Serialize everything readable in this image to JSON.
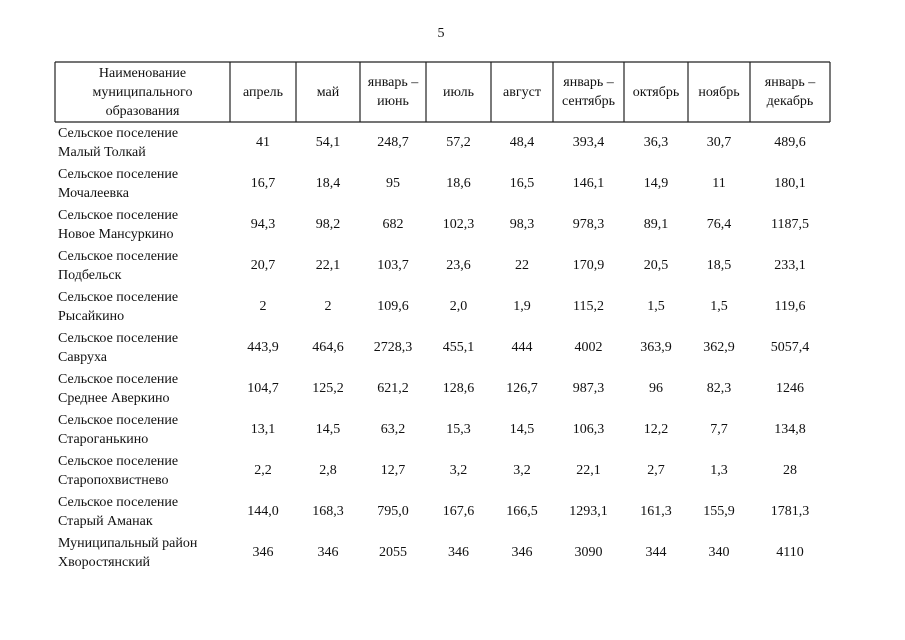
{
  "page_number": "5",
  "table": {
    "header": [
      [
        "Наименование",
        "муниципального",
        "образования"
      ],
      [
        "апрель"
      ],
      [
        "май"
      ],
      [
        "январь –",
        "июнь"
      ],
      [
        "июль"
      ],
      [
        "август"
      ],
      [
        "январь –",
        "сентябрь"
      ],
      [
        "октябрь"
      ],
      [
        "ноябрь"
      ],
      [
        "январь –",
        "декабрь"
      ]
    ],
    "rows": [
      {
        "name": [
          "Сельское поселение",
          "Малый Толкай"
        ],
        "cells": [
          "41",
          "54,1",
          "248,7",
          "57,2",
          "48,4",
          "393,4",
          "36,3",
          "30,7",
          "489,6"
        ]
      },
      {
        "name": [
          "Сельское поселение",
          "Мочалеевка"
        ],
        "cells": [
          "16,7",
          "18,4",
          "95",
          "18,6",
          "16,5",
          "146,1",
          "14,9",
          "11",
          "180,1"
        ]
      },
      {
        "name": [
          "Сельское поселение",
          "Новое Мансуркино"
        ],
        "cells": [
          "94,3",
          "98,2",
          "682",
          "102,3",
          "98,3",
          "978,3",
          "89,1",
          "76,4",
          "1187,5"
        ]
      },
      {
        "name": [
          "Сельское поселение",
          "Подбельск"
        ],
        "cells": [
          "20,7",
          "22,1",
          "103,7",
          "23,6",
          "22",
          "170,9",
          "20,5",
          "18,5",
          "233,1"
        ]
      },
      {
        "name": [
          "Сельское поселение",
          "Рысайкино"
        ],
        "cells": [
          "2",
          "2",
          "109,6",
          "2,0",
          "1,9",
          "115,2",
          "1,5",
          "1,5",
          "119,6"
        ]
      },
      {
        "name": [
          "Сельское поселение",
          "Савруха"
        ],
        "cells": [
          "443,9",
          "464,6",
          "2728,3",
          "455,1",
          "444",
          "4002",
          "363,9",
          "362,9",
          "5057,4"
        ]
      },
      {
        "name": [
          "Сельское поселение",
          "Среднее Аверкино"
        ],
        "cells": [
          "104,7",
          "125,2",
          "621,2",
          "128,6",
          "126,7",
          "987,3",
          "96",
          "82,3",
          "1246"
        ]
      },
      {
        "name": [
          "Сельское поселение",
          "Староганькино"
        ],
        "cells": [
          "13,1",
          "14,5",
          "63,2",
          "15,3",
          "14,5",
          "106,3",
          "12,2",
          "7,7",
          "134,8"
        ]
      },
      {
        "name": [
          "Сельское поселение",
          "Старопохвистнево"
        ],
        "cells": [
          "2,2",
          "2,8",
          "12,7",
          "3,2",
          "3,2",
          "22,1",
          "2,7",
          "1,3",
          "28"
        ]
      },
      {
        "name": [
          "Сельское поселение",
          "Старый Аманак"
        ],
        "cells": [
          "144,0",
          "168,3",
          "795,0",
          "167,6",
          "166,5",
          "1293,1",
          "161,3",
          "155,9",
          "1781,3"
        ]
      },
      {
        "name": [
          "Муниципальный район",
          "Хворостянский"
        ],
        "cells": [
          "346",
          "346",
          "2055",
          "346",
          "346",
          "3090",
          "344",
          "340",
          "4110"
        ]
      }
    ]
  }
}
